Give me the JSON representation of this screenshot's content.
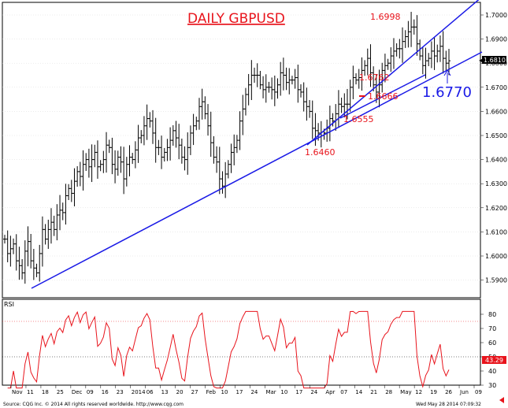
{
  "chart_title": "DAILY GBPUSD",
  "footer": {
    "source": "Source: CQG Inc. © 2014 All rights reserved worldwide. http://www.cqg.com",
    "timestamp": "Wed May 28 2014 07:09:32"
  },
  "colors": {
    "title": "#e8141c",
    "bars": "#000000",
    "trendlines": "#1a1ae6",
    "rsi_line": "#e8141c",
    "price_marker": "#e8141c",
    "last_price_box": "#000000"
  },
  "chart_data": [
    {
      "type": "ohlc",
      "instrument": "GBPUSD",
      "title": "DAILY GBPUSD",
      "y_ticks": [
        "1.7000",
        "1.6900",
        "1.6800",
        "1.6700",
        "1.6600",
        "1.6500",
        "1.6400",
        "1.6300",
        "1.6200",
        "1.6100",
        "1.6000",
        "1.5900"
      ],
      "ylim": [
        1.5855,
        1.7055
      ],
      "x_ticks": [
        "Nov",
        "11",
        "18",
        "25",
        "Dec",
        "09",
        "16",
        "23",
        "2014",
        "06",
        "13",
        "20",
        "27",
        "Feb",
        "10",
        "17",
        "24",
        "Mar",
        "10",
        "17",
        "24",
        "Apr",
        "07",
        "14",
        "21",
        "28",
        "May",
        "12",
        "19",
        "26",
        "Jun",
        "09"
      ],
      "last_price": "1.6810",
      "closes": [
        1.607,
        1.601,
        1.603,
        1.605,
        1.598,
        1.596,
        1.593,
        1.602,
        1.606,
        1.598,
        1.595,
        1.593,
        1.601,
        1.611,
        1.607,
        1.611,
        1.614,
        1.611,
        1.617,
        1.619,
        1.618,
        1.625,
        1.628,
        1.626,
        1.631,
        1.635,
        1.633,
        1.638,
        1.64,
        1.637,
        1.64,
        1.643,
        1.637,
        1.638,
        1.64,
        1.646,
        1.645,
        1.638,
        1.636,
        1.641,
        1.639,
        1.632,
        1.638,
        1.641,
        1.64,
        1.644,
        1.649,
        1.65,
        1.654,
        1.657,
        1.656,
        1.651,
        1.645,
        1.645,
        1.641,
        1.643,
        1.645,
        1.648,
        1.652,
        1.649,
        1.646,
        1.641,
        1.64,
        1.645,
        1.651,
        1.654,
        1.656,
        1.662,
        1.664,
        1.659,
        1.654,
        1.647,
        1.641,
        1.639,
        1.632,
        1.629,
        1.634,
        1.638,
        1.643,
        1.645,
        1.648,
        1.656,
        1.661,
        1.667,
        1.671,
        1.675,
        1.675,
        1.675,
        1.671,
        1.669,
        1.67,
        1.67,
        1.669,
        1.668,
        1.671,
        1.676,
        1.675,
        1.672,
        1.673,
        1.673,
        1.674,
        1.669,
        1.668,
        1.664,
        1.662,
        1.66,
        1.653,
        1.652,
        1.651,
        1.65,
        1.651,
        1.653,
        1.657,
        1.656,
        1.659,
        1.663,
        1.662,
        1.663,
        1.663,
        1.67,
        1.674,
        1.673,
        1.674,
        1.677,
        1.679,
        1.682,
        1.676,
        1.671,
        1.668,
        1.671,
        1.677,
        1.679,
        1.68,
        1.683,
        1.685,
        1.686,
        1.686,
        1.689,
        1.691,
        1.693,
        1.695,
        1.695,
        1.688,
        1.683,
        1.679,
        1.681,
        1.682,
        1.685,
        1.683,
        1.685,
        1.687,
        1.682,
        1.68,
        1.681
      ],
      "annotations": [
        "1.6998",
        "1.6762",
        "1.6666",
        "1.6555",
        "1.6460",
        "1.6770"
      ],
      "subplot": {
        "name": "RSI",
        "y_ticks": [
          "80",
          "70",
          "60",
          "50",
          "40",
          "30"
        ],
        "ylim": [
          25,
          85
        ],
        "levels": [
          75,
          50
        ],
        "last_value": "43.29"
      }
    }
  ]
}
